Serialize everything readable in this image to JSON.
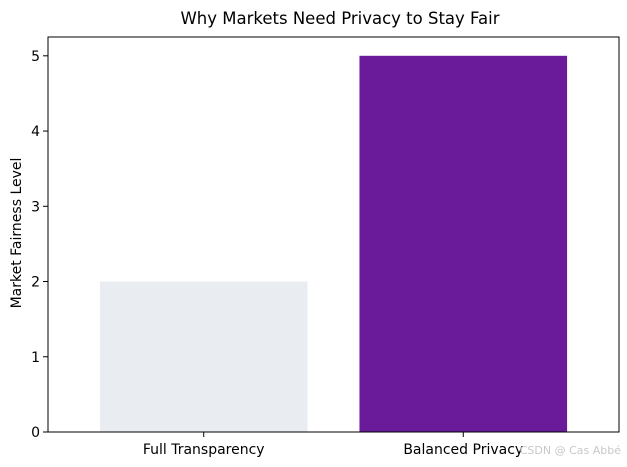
{
  "chart_data": {
    "type": "bar",
    "title": "Why Markets Need Privacy to Stay Fair",
    "xlabel": "",
    "ylabel": "Market Fairness Level",
    "categories": [
      "Full Transparency",
      "Balanced Privacy"
    ],
    "values": [
      2,
      5
    ],
    "colors": [
      "#e9edf2",
      "#6a1b9a"
    ],
    "ylim": [
      0,
      5.25
    ],
    "yticks": [
      0,
      1,
      2,
      3,
      4,
      5
    ],
    "grid": false,
    "legend": "none"
  },
  "watermark": "CSDN @ Cas Abbé"
}
